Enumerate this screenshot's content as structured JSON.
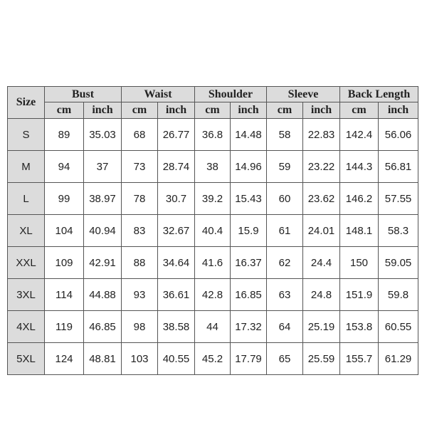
{
  "table": {
    "size_header": "Size",
    "groups": [
      "Bust",
      "Waist",
      "Shoulder",
      "Sleeve",
      "Back Length"
    ],
    "unit_labels": [
      "cm",
      "inch"
    ],
    "rows": [
      {
        "size": "S",
        "values": [
          "89",
          "35.03",
          "68",
          "26.77",
          "36.8",
          "14.48",
          "58",
          "22.83",
          "142.4",
          "56.06"
        ]
      },
      {
        "size": "M",
        "values": [
          "94",
          "37",
          "73",
          "28.74",
          "38",
          "14.96",
          "59",
          "23.22",
          "144.3",
          "56.81"
        ]
      },
      {
        "size": "L",
        "values": [
          "99",
          "38.97",
          "78",
          "30.7",
          "39.2",
          "15.43",
          "60",
          "23.62",
          "146.2",
          "57.55"
        ]
      },
      {
        "size": "XL",
        "values": [
          "104",
          "40.94",
          "83",
          "32.67",
          "40.4",
          "15.9",
          "61",
          "24.01",
          "148.1",
          "58.3"
        ]
      },
      {
        "size": "XXL",
        "values": [
          "109",
          "42.91",
          "88",
          "34.64",
          "41.6",
          "16.37",
          "62",
          "24.4",
          "150",
          "59.05"
        ]
      },
      {
        "size": "3XL",
        "values": [
          "114",
          "44.88",
          "93",
          "36.61",
          "42.8",
          "16.85",
          "63",
          "24.8",
          "151.9",
          "59.8"
        ]
      },
      {
        "size": "4XL",
        "values": [
          "119",
          "46.85",
          "98",
          "38.58",
          "44",
          "17.32",
          "64",
          "25.19",
          "153.8",
          "60.55"
        ]
      },
      {
        "size": "5XL",
        "values": [
          "124",
          "48.81",
          "103",
          "40.55",
          "45.2",
          "17.79",
          "65",
          "25.59",
          "155.7",
          "61.29"
        ]
      }
    ]
  }
}
